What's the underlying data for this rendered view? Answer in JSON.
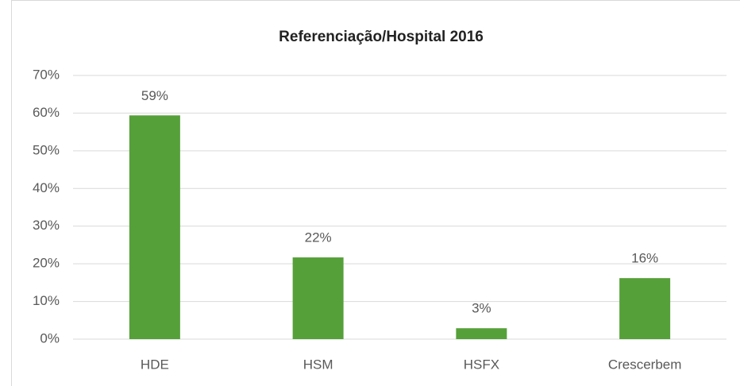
{
  "chart_data": {
    "type": "bar",
    "title": "Referenciação/Hospital 2016",
    "categories": [
      "HDE",
      "HSM",
      "HSFX",
      "Crescerbem"
    ],
    "values": [
      59.4,
      21.7,
      2.9,
      16.2
    ],
    "value_labels": [
      "59%",
      "22%",
      "3%",
      "16%"
    ],
    "color": "#56a03a",
    "ylim": [
      0,
      70
    ],
    "yticks": [
      {
        "value": 0,
        "label": "0%"
      },
      {
        "value": 10,
        "label": "10%"
      },
      {
        "value": 20,
        "label": "20%"
      },
      {
        "value": 30,
        "label": "30%"
      },
      {
        "value": 40,
        "label": "40%"
      },
      {
        "value": 50,
        "label": "50%"
      },
      {
        "value": 60,
        "label": "60%"
      },
      {
        "value": 70,
        "label": "70%"
      }
    ],
    "grid": true
  }
}
